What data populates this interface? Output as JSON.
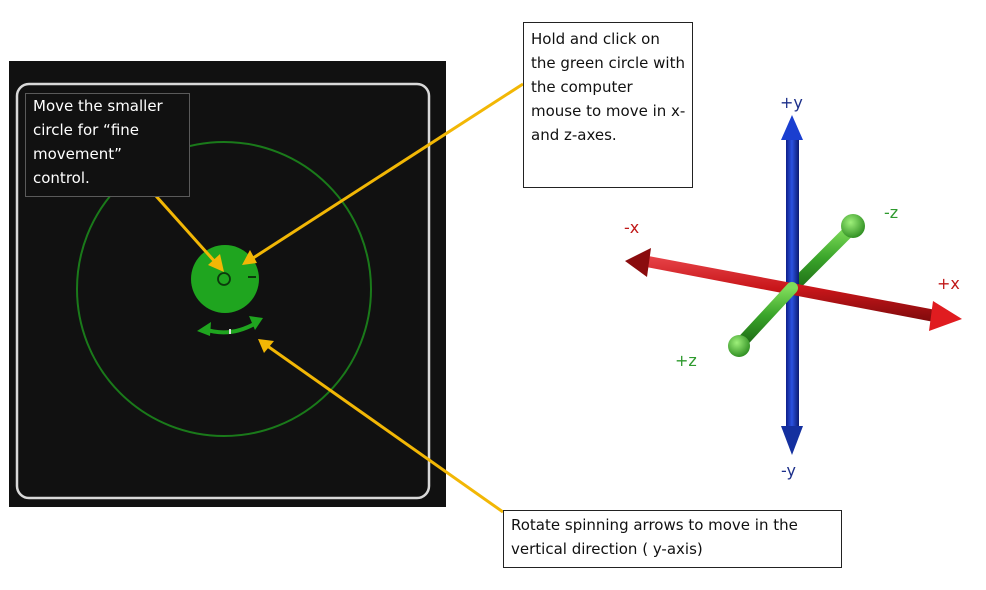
{
  "callouts": {
    "fine_movement": "Move the smaller circle for “fine movement” control.",
    "hold_click": "Hold and click on the green circle with the computer mouse to move in x- and z-axes.",
    "rotate": "Rotate spinning arrows to move in the vertical direction ( y-axis)"
  },
  "axes": {
    "pos_y": "+y",
    "neg_y": "-y",
    "pos_x": "+x",
    "neg_x": "-x",
    "pos_z": "+z",
    "neg_z": "-z"
  },
  "colors": {
    "panel_bg": "#111111",
    "panel_frame": "#d9d9d9",
    "control_green": "#1fa51f",
    "ring_green": "#1a7a1a",
    "pointer_arrow": "#f2b705",
    "x_axis": "#c8161a",
    "y_axis": "#1232b8",
    "z_axis": "#3aa52a",
    "x_label": "#c01818",
    "y_label": "#1c2f8a",
    "z_label": "#2e9a2e"
  },
  "icons": {
    "spin_arrows": "rotate-arrows-icon",
    "fine_circle": "fine-control-circle"
  }
}
